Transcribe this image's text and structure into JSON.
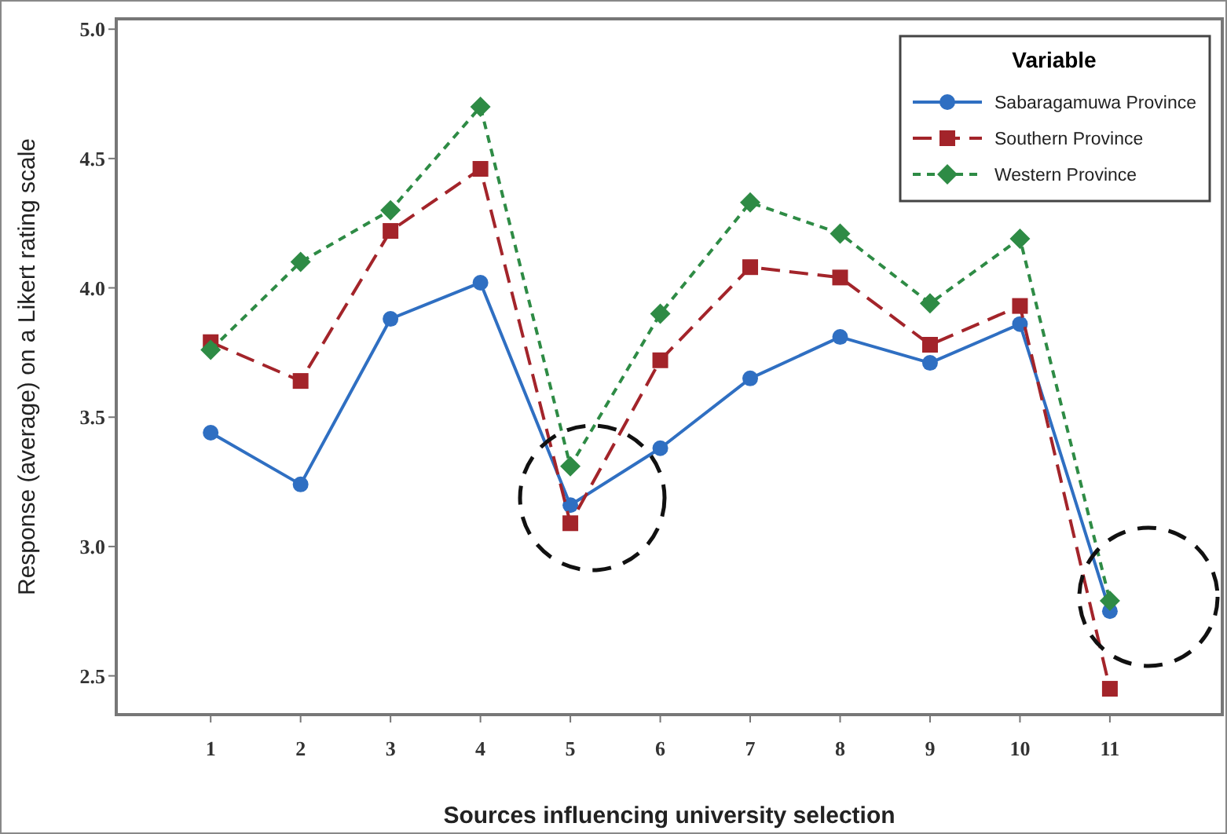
{
  "chart_data": {
    "type": "line",
    "xlabel": "Sources influencing university selection",
    "ylabel": "Response (average) on a Likert rating scale",
    "legend_title": "Variable",
    "legend": "top right",
    "grid": false,
    "x": [
      1,
      2,
      3,
      4,
      5,
      6,
      7,
      8,
      9,
      10,
      11
    ],
    "xlim": [
      -0.05,
      12.25
    ],
    "xticks": [
      1,
      2,
      3,
      4,
      5,
      6,
      7,
      8,
      9,
      10,
      11
    ],
    "ylim": [
      2.35,
      5.04
    ],
    "yticks": [
      {
        "value": 2.5,
        "label": "2.5"
      },
      {
        "value": 3,
        "label": "3.0"
      },
      {
        "value": 3.5,
        "label": "3.5"
      },
      {
        "value": 4,
        "label": "4.0"
      },
      {
        "value": 4.5,
        "label": "4.5"
      },
      {
        "value": 5,
        "label": "5.0"
      }
    ],
    "series": [
      {
        "name": "Sabaragamuwa Province",
        "color": "#2f6fc2",
        "marker": "circle",
        "line_style": "solid",
        "values": [
          3.44,
          3.24,
          3.88,
          4.02,
          3.16,
          3.38,
          3.65,
          3.81,
          3.71,
          3.86,
          2.75
        ]
      },
      {
        "name": "Southern Province",
        "color": "#a3242a",
        "marker": "square",
        "line_style": "dashed",
        "values": [
          3.79,
          3.64,
          4.22,
          4.46,
          3.09,
          3.72,
          4.08,
          4.04,
          3.78,
          3.93,
          2.45
        ]
      },
      {
        "name": "Western Province",
        "color": "#2e8b45",
        "marker": "diamond",
        "line_style": "dotted",
        "values": [
          3.76,
          4.1,
          4.3,
          4.7,
          3.31,
          3.9,
          4.33,
          4.21,
          3.94,
          4.19,
          2.79
        ]
      }
    ]
  }
}
